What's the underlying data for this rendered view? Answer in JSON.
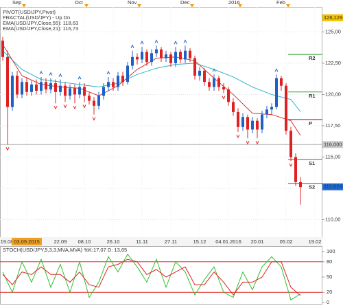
{
  "chart_data": {
    "type": "candlestick",
    "legend": [
      {
        "text": "PIVOT(USD/JPY,Pivot)",
        "color": "#222222"
      },
      {
        "text": "FRACTAL(USD/JPY) - Up  Dn",
        "color": "#1e5fc8"
      },
      {
        "text": "EMA(USD/JPY,Close,55): 118,63",
        "color": "#2bb5c8"
      },
      {
        "text": "EMA(USD/JPY,Close,21): 116,73",
        "color": "#e03030"
      }
    ],
    "categories": [
      null,
      "19.08.",
      null,
      null,
      null,
      "03.09.2015",
      null,
      null,
      null,
      null,
      null,
      null,
      "22.09",
      null,
      null,
      null,
      null,
      "08.10",
      null,
      null,
      null,
      null,
      null,
      "26.10",
      null,
      null,
      null,
      null,
      null,
      "11.11",
      null,
      null,
      null,
      null,
      null,
      "27.11",
      null,
      null,
      null,
      null,
      null,
      "15.12",
      null,
      null,
      null,
      null,
      null,
      "04.01.2016",
      null,
      null,
      null,
      null,
      null,
      "20.01",
      null,
      null,
      null,
      null,
      null,
      "05.02",
      null,
      null,
      null,
      null,
      null,
      "19.02"
    ],
    "highlight_category": "03.09.2015",
    "top_categories": [
      null,
      null,
      "Sep",
      null,
      null,
      null,
      null,
      null,
      null,
      null,
      null,
      null,
      null,
      null,
      null,
      "Oct",
      null,
      null,
      null,
      null,
      null,
      null,
      null,
      null,
      null,
      null,
      "Nov",
      null,
      null,
      null,
      null,
      null,
      null,
      null,
      null,
      null,
      null,
      "Dec",
      null,
      null,
      null,
      null,
      null,
      null,
      null,
      null,
      null,
      "2016",
      null,
      null,
      null,
      null,
      null,
      null,
      null,
      null,
      null,
      "Feb",
      null,
      null,
      null,
      null,
      null,
      null,
      null,
      null
    ],
    "candles": [
      [
        124.3,
        124.6,
        122.7,
        123.0
      ],
      [
        123.0,
        123.5,
        116.0,
        119.0
      ],
      [
        119.0,
        121.8,
        118.7,
        121.5
      ],
      [
        121.5,
        121.9,
        119.7,
        120.0
      ],
      [
        120.0,
        121.3,
        119.7,
        121.0
      ],
      [
        121.0,
        121.4,
        119.9,
        120.2
      ],
      [
        120.2,
        121.1,
        119.9,
        120.8
      ],
      [
        120.8,
        121.2,
        120.0,
        120.3
      ],
      [
        120.3,
        121.4,
        120.0,
        121.0
      ],
      [
        121.0,
        121.3,
        120.1,
        120.4
      ],
      [
        120.4,
        121.3,
        120.1,
        120.9
      ],
      [
        120.9,
        121.2,
        119.3,
        120.2
      ],
      [
        120.2,
        121.2,
        119.9,
        120.7
      ],
      [
        120.7,
        121.0,
        119.4,
        119.9
      ],
      [
        119.9,
        120.8,
        119.6,
        120.5
      ],
      [
        120.5,
        120.8,
        119.3,
        120.0
      ],
      [
        120.0,
        121.0,
        119.7,
        120.6
      ],
      [
        120.6,
        120.9,
        119.4,
        119.9
      ],
      [
        119.9,
        120.2,
        119.2,
        119.5
      ],
      [
        119.5,
        119.8,
        118.4,
        119.1
      ],
      [
        119.1,
        120.2,
        118.8,
        119.9
      ],
      [
        119.9,
        120.9,
        119.6,
        120.6
      ],
      [
        120.6,
        121.4,
        120.3,
        121.0
      ],
      [
        121.0,
        121.3,
        120.3,
        120.6
      ],
      [
        120.6,
        121.8,
        120.3,
        121.5
      ],
      [
        121.5,
        121.8,
        120.7,
        121.0
      ],
      [
        121.0,
        122.6,
        120.8,
        122.3
      ],
      [
        122.3,
        123.5,
        122.0,
        123.0
      ],
      [
        123.0,
        123.3,
        122.4,
        122.8
      ],
      [
        122.8,
        123.8,
        122.5,
        123.4
      ],
      [
        123.4,
        123.6,
        122.3,
        122.6
      ],
      [
        122.6,
        123.6,
        122.3,
        123.3
      ],
      [
        123.3,
        123.9,
        123.0,
        123.6
      ],
      [
        123.6,
        123.8,
        122.6,
        122.9
      ],
      [
        122.9,
        123.5,
        122.6,
        123.2
      ],
      [
        123.2,
        123.4,
        122.2,
        122.5
      ],
      [
        122.5,
        123.8,
        122.2,
        123.4
      ],
      [
        123.4,
        123.6,
        122.5,
        122.8
      ],
      [
        122.8,
        123.9,
        122.5,
        123.5
      ],
      [
        123.5,
        123.7,
        122.6,
        122.9
      ],
      [
        122.9,
        123.1,
        121.2,
        121.5
      ],
      [
        121.5,
        122.2,
        121.1,
        121.9
      ],
      [
        121.9,
        122.1,
        120.7,
        121.0
      ],
      [
        121.0,
        121.3,
        120.3,
        120.6
      ],
      [
        120.6,
        121.6,
        120.3,
        121.3
      ],
      [
        121.3,
        121.5,
        120.3,
        120.6
      ],
      [
        120.6,
        120.9,
        120.1,
        120.4
      ],
      [
        120.4,
        120.6,
        119.1,
        119.4
      ],
      [
        119.4,
        119.7,
        118.3,
        118.6
      ],
      [
        118.6,
        118.9,
        117.0,
        117.4
      ],
      [
        117.4,
        118.5,
        117.1,
        118.2
      ],
      [
        118.2,
        118.4,
        116.5,
        117.2
      ],
      [
        117.2,
        118.2,
        116.9,
        117.9
      ],
      [
        117.9,
        118.1,
        116.5,
        117.2
      ],
      [
        117.2,
        118.7,
        116.9,
        118.4
      ],
      [
        118.4,
        119.1,
        118.1,
        118.8
      ],
      [
        118.8,
        119.3,
        118.4,
        119.0
      ],
      [
        119.0,
        121.6,
        118.8,
        121.3
      ],
      [
        121.3,
        121.5,
        120.3,
        120.7
      ],
      [
        120.7,
        120.9,
        116.8,
        117.1
      ],
      [
        117.1,
        117.4,
        114.7,
        115.0
      ],
      [
        115.0,
        115.3,
        112.7,
        113.0
      ],
      [
        113.0,
        113.4,
        111.2,
        112.6
      ],
      null,
      null,
      null
    ],
    "up_color": "#1e5fc8",
    "down_color": "#e02020",
    "fractals_up": [
      8,
      10,
      12,
      16,
      22,
      27,
      29,
      32,
      36,
      38,
      44,
      57
    ],
    "fractals_down": [
      1,
      11,
      13,
      15,
      17,
      19,
      46,
      49,
      51,
      53,
      60
    ],
    "ema_series": [
      {
        "color": "#2bb5c8",
        "x": [
          0,
          4,
          8,
          12,
          16,
          20,
          24,
          28,
          32,
          36,
          40,
          44,
          48,
          52,
          56,
          60,
          62
        ],
        "values": [
          123.5,
          122.0,
          121.2,
          121.0,
          120.8,
          120.6,
          120.9,
          121.6,
          122.1,
          122.4,
          122.5,
          122.0,
          121.4,
          120.6,
          120.0,
          119.6,
          118.63
        ]
      },
      {
        "color": "#e03030",
        "x": [
          0,
          4,
          8,
          12,
          16,
          20,
          24,
          28,
          32,
          36,
          40,
          44,
          48,
          52,
          56,
          60,
          62
        ],
        "values": [
          124.0,
          121.5,
          120.8,
          120.6,
          120.5,
          119.9,
          120.7,
          122.0,
          122.9,
          123.0,
          122.7,
          121.3,
          120.0,
          118.5,
          118.4,
          117.9,
          116.73
        ]
      }
    ],
    "pivots": [
      {
        "name": "R2",
        "value": 123.2,
        "color": "#2ca02c"
      },
      {
        "name": "R1",
        "value": 120.2,
        "color": "#2ca02c"
      },
      {
        "name": "P",
        "value": 118.0,
        "color": "#a01818"
      },
      {
        "name": "S1",
        "value": 114.8,
        "color": "#e02020"
      },
      {
        "name": "S2",
        "value": 112.9,
        "color": "#e02020"
      }
    ],
    "price_markers": [
      {
        "value": 126.129,
        "label": "126,129",
        "color": "#f2c200",
        "text_color": "#000000"
      },
      {
        "value": 116.0,
        "label": "116,000",
        "color": "#cccccc",
        "text_color": "#000000"
      },
      {
        "value": 112.624,
        "label": "112,624",
        "color": "#1e6bd6",
        "text_color": "#ffffff"
      }
    ],
    "ylim": [
      108.6,
      127.0
    ],
    "yticks": [
      {
        "value": 110,
        "label": "110,00"
      },
      {
        "value": 112.5,
        "label": "112,50"
      },
      {
        "value": 115,
        "label": "115,00"
      },
      {
        "value": 117.5,
        "label": "117,50"
      },
      {
        "value": 120,
        "label": "120,00"
      },
      {
        "value": 122.5,
        "label": "122,50"
      },
      {
        "value": 125,
        "label": "125,00"
      }
    ],
    "grid": true,
    "oscillator": {
      "title": "STOCH(USD/JPY,5,3,3,MVA,MVA) %K:17,07 D: 13,65",
      "ylim": [
        0,
        100
      ],
      "yticks": [
        0,
        20,
        50,
        80,
        100
      ],
      "levels": [
        20,
        80
      ],
      "level_color": "#e02020",
      "x": [
        0,
        2,
        4,
        6,
        8,
        10,
        12,
        14,
        16,
        18,
        20,
        22,
        24,
        26,
        28,
        30,
        32,
        34,
        36,
        38,
        40,
        42,
        44,
        46,
        48,
        50,
        52,
        54,
        56,
        58,
        60,
        62
      ],
      "series": [
        {
          "color": "#30c030",
          "values": [
            60,
            20,
            80,
            40,
            85,
            30,
            75,
            20,
            80,
            10,
            40,
            90,
            60,
            95,
            70,
            40,
            85,
            30,
            80,
            60,
            15,
            45,
            70,
            20,
            10,
            60,
            25,
            70,
            90,
            70,
            5,
            17.07
          ]
        },
        {
          "color": "#e02020",
          "values": [
            55,
            35,
            60,
            55,
            70,
            55,
            55,
            40,
            60,
            35,
            30,
            70,
            75,
            85,
            80,
            55,
            65,
            50,
            60,
            70,
            35,
            35,
            60,
            40,
            15,
            40,
            40,
            50,
            80,
            80,
            30,
            13.65
          ]
        }
      ]
    }
  }
}
